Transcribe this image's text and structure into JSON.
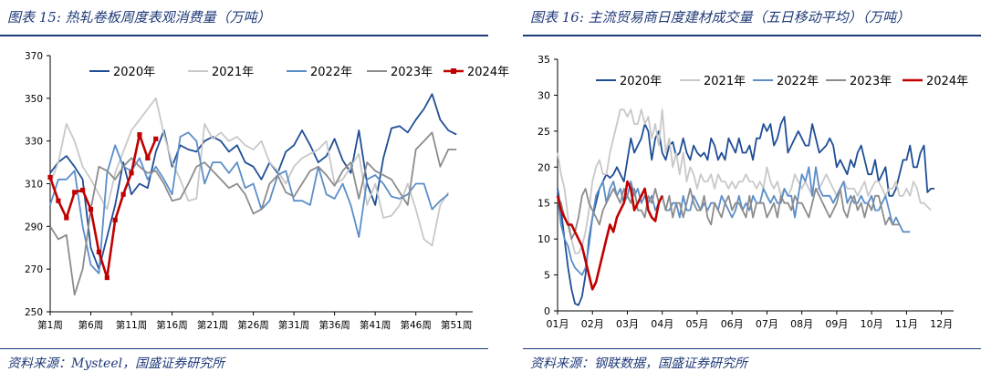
{
  "charts": [
    {
      "title": "图表 15:  热轧卷板周度表观消费量（万吨）",
      "source": "资料来源：Mysteel，国盛证券研究所"
    },
    {
      "title": "图表 16:  主流贸易商日度建材成交量（五日移动平均）（万吨）",
      "source": "资料来源：钢联数据，国盛证券研究所"
    }
  ],
  "colors": {
    "2020年": "#1f4e96",
    "2021年": "#c8c8c8",
    "2022年": "#5b8ec9",
    "2023年": "#8c8c8c",
    "2024年": "#c00000",
    "header": "#1f3a78"
  },
  "chart_data": [
    {
      "type": "line",
      "title": "图表 15:  热轧卷板周度表观消费量（万吨）",
      "ylim": [
        250,
        370
      ],
      "yticks": [
        250,
        270,
        290,
        310,
        330,
        350,
        370
      ],
      "xlim": [
        1,
        53
      ],
      "xticks": [
        1,
        6,
        11,
        16,
        21,
        26,
        31,
        36,
        41,
        46,
        51
      ],
      "xticklabels": [
        "第1周",
        "第6周",
        "第11周",
        "第16周",
        "第21周",
        "第26周",
        "第31周",
        "第36周",
        "第41周",
        "第46周",
        "第51周"
      ],
      "series": [
        {
          "name": "2020年",
          "x_start": 1,
          "values": [
            315,
            320,
            323,
            318,
            312,
            280,
            270,
            285,
            300,
            320,
            305,
            310,
            308,
            325,
            335,
            318,
            328,
            326,
            325,
            330,
            332,
            330,
            325,
            328,
            320,
            318,
            312,
            320,
            315,
            325,
            328,
            335,
            328,
            320,
            323,
            331,
            321,
            315,
            335,
            310,
            300,
            322,
            336,
            337,
            334,
            340,
            345,
            352,
            340,
            335,
            333
          ]
        },
        {
          "name": "2021年",
          "x_start": 1,
          "values": [
            310,
            320,
            338,
            330,
            318,
            312,
            305,
            298,
            315,
            325,
            335,
            340,
            345,
            350,
            333,
            320,
            312,
            302,
            303,
            338,
            331,
            334,
            330,
            332,
            328,
            326,
            330,
            320,
            316,
            310,
            318,
            322,
            324,
            326,
            330,
            310,
            312,
            318,
            324,
            300,
            310,
            294,
            295,
            300,
            310,
            298,
            284,
            281,
            300,
            306
          ]
        },
        {
          "name": "2022年",
          "x_start": 1,
          "values": [
            300,
            312,
            312,
            316,
            290,
            272,
            268,
            315,
            328,
            318,
            316,
            322,
            312,
            318,
            312,
            305,
            332,
            334,
            330,
            310,
            320,
            320,
            315,
            320,
            308,
            310,
            298,
            302,
            314,
            316,
            302,
            302,
            300,
            318,
            305,
            303,
            310,
            300,
            285,
            312,
            314,
            310,
            304,
            303,
            305,
            310,
            310,
            298,
            302,
            305
          ]
        },
        {
          "name": "2023年",
          "x_start": 1,
          "values": [
            290,
            284,
            286,
            258,
            270,
            298,
            318,
            316,
            312,
            318,
            322,
            318,
            315,
            316,
            310,
            302,
            303,
            310,
            318,
            320,
            316,
            312,
            308,
            310,
            305,
            296,
            298,
            310,
            314,
            306,
            304,
            310,
            316,
            318,
            314,
            309,
            316,
            320,
            303,
            320,
            316,
            314,
            312,
            306,
            300,
            326,
            330,
            334,
            318,
            326,
            326
          ]
        },
        {
          "name": "2024年",
          "x_start": 1,
          "values": [
            313,
            302,
            294,
            306,
            307,
            298,
            278,
            266,
            293,
            305,
            315,
            333,
            322,
            331
          ]
        }
      ]
    },
    {
      "type": "line",
      "title": "图表 16:  主流贸易商日度建材成交量（五日移动平均）（万吨）",
      "ylim": [
        0,
        35
      ],
      "yticks": [
        0,
        5,
        10,
        15,
        20,
        25,
        30,
        35
      ],
      "xlim": [
        1,
        12.35
      ],
      "xticks": [
        1,
        2,
        3,
        4,
        5,
        6,
        7,
        8,
        9,
        10,
        11,
        12
      ],
      "xticklabels": [
        "01月",
        "02月",
        "03月",
        "04月",
        "05月",
        "06月",
        "07月",
        "08月",
        "09月",
        "10月",
        "11月",
        "12月"
      ],
      "series": [
        {
          "name": "2020年",
          "x_start": 1.0,
          "x_step": 0.1,
          "values": [
            17,
            14,
            10,
            6,
            3,
            1,
            0.8,
            2,
            5,
            10,
            13,
            15,
            17,
            18,
            19,
            18.5,
            19,
            20,
            19,
            18,
            21,
            24,
            22,
            23,
            24,
            26,
            25,
            21,
            24,
            25,
            22,
            21,
            23,
            23.5,
            21.5,
            22,
            24,
            22,
            21,
            23,
            22,
            21.5,
            22,
            21,
            24,
            23,
            21,
            22,
            21,
            24,
            23,
            22,
            24,
            22,
            22,
            23,
            21,
            24,
            24,
            26,
            25,
            26,
            23,
            24,
            26,
            27,
            22,
            23,
            24,
            25,
            24,
            23,
            23,
            26,
            24,
            22,
            22.5,
            23,
            24,
            23,
            20,
            21,
            20,
            19,
            21,
            20,
            22,
            23,
            21,
            19,
            19,
            21,
            18,
            19,
            20,
            16,
            16,
            17,
            19,
            21,
            21,
            23,
            20,
            20,
            22,
            23,
            16.5,
            17,
            17
          ]
        },
        {
          "name": "2021年",
          "x_start": 1.0,
          "x_step": 0.1,
          "values": [
            22,
            19,
            17,
            13,
            10,
            8,
            8,
            9,
            11,
            14,
            18,
            20,
            21,
            19,
            19,
            22,
            24,
            26,
            28,
            28,
            27,
            28,
            26,
            26,
            28,
            26,
            27,
            24,
            26,
            23,
            28,
            22,
            24,
            20,
            22,
            19,
            22,
            18,
            20,
            19,
            17,
            19,
            18,
            18,
            19,
            17,
            19,
            18,
            18,
            17,
            18,
            17,
            18,
            18,
            19,
            18,
            18,
            17,
            18,
            17,
            20,
            18,
            17,
            18,
            16,
            17,
            16,
            17,
            19,
            18,
            17,
            18,
            17,
            16,
            17,
            17,
            18,
            19,
            18,
            17,
            16,
            17,
            18,
            17,
            17,
            17,
            16,
            17,
            18,
            16,
            17,
            18,
            18,
            17,
            16,
            17,
            17,
            18,
            16,
            16,
            17,
            16,
            18,
            17,
            15,
            15,
            14.5,
            14
          ]
        },
        {
          "name": "2022年",
          "x_start": 1.0,
          "x_step": 0.1,
          "values": [
            16,
            12,
            10,
            9,
            7,
            6,
            5.5,
            5,
            6,
            9,
            13,
            16,
            17,
            18,
            15,
            17,
            18,
            16,
            17,
            15,
            16,
            18,
            16,
            17,
            15,
            16,
            15,
            16,
            14,
            15,
            16,
            14,
            14,
            15,
            15,
            13,
            16,
            14,
            14,
            16,
            15,
            14,
            15,
            14,
            15,
            15,
            14,
            16,
            15,
            14,
            13,
            14,
            16,
            14,
            15,
            14,
            16,
            15,
            15,
            17,
            16,
            15,
            16,
            15,
            15,
            17,
            16,
            16,
            13,
            16,
            19,
            18,
            20,
            16,
            20,
            17,
            16,
            16,
            16,
            15,
            16,
            17,
            18,
            15,
            16,
            15,
            15,
            16,
            15,
            15,
            16,
            14,
            14,
            15,
            16,
            14,
            12,
            13,
            12,
            11,
            11,
            11
          ]
        },
        {
          "name": "2023年",
          "x_start": 1.0,
          "x_step": 0.1,
          "values": [
            16,
            15,
            13,
            12,
            10,
            11,
            13,
            16,
            17,
            15,
            14,
            13,
            12,
            14,
            15,
            16,
            17,
            16,
            15,
            17,
            16,
            15,
            17,
            14,
            14,
            13,
            16,
            15,
            17,
            15,
            16,
            14,
            16,
            13,
            15,
            15,
            13,
            15,
            17,
            15,
            14,
            14,
            16,
            13,
            12,
            15,
            14,
            13,
            15,
            16,
            14,
            15,
            15,
            14,
            13,
            16,
            13,
            15,
            15,
            15,
            13,
            14,
            15,
            13,
            16,
            15,
            15,
            14,
            16,
            15,
            15,
            14,
            13,
            15,
            17,
            16,
            15,
            14,
            13,
            14,
            15,
            17,
            14,
            13,
            15,
            16,
            14,
            15,
            13,
            15,
            14,
            16,
            16,
            14,
            12,
            13,
            12,
            12,
            12
          ]
        },
        {
          "name": "2024年",
          "x_start": 1.0,
          "x_step": 0.1,
          "values": [
            16,
            14,
            13,
            12,
            12,
            11,
            10,
            9,
            7,
            5,
            3,
            4,
            6,
            8,
            10,
            12,
            11,
            13,
            14,
            15,
            18,
            17,
            14,
            15,
            16,
            17,
            14,
            13,
            12.5,
            15,
            16
          ]
        }
      ]
    }
  ]
}
